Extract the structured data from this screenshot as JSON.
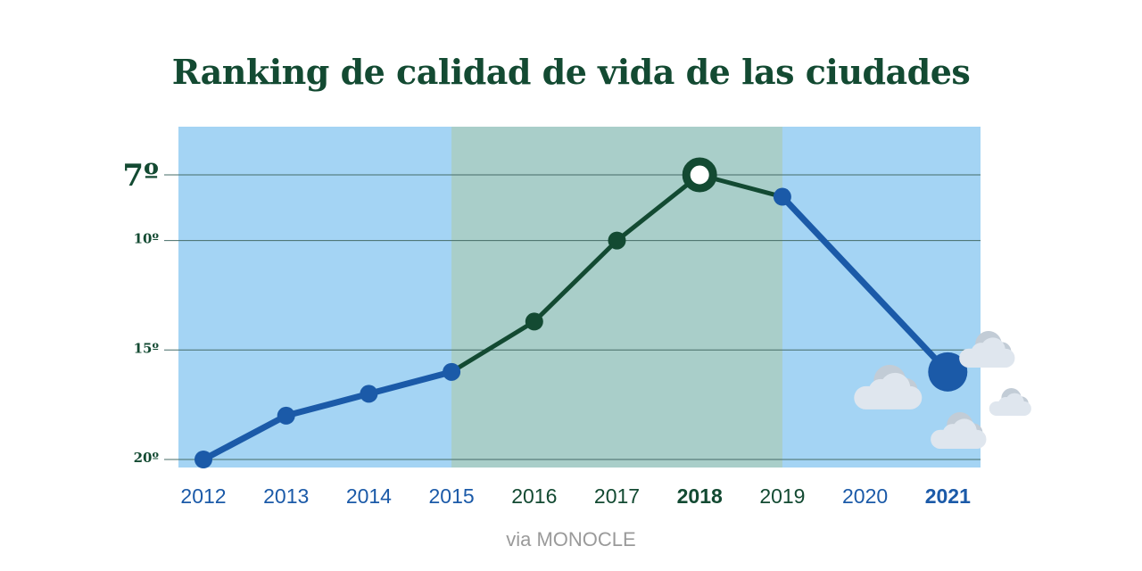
{
  "title": "Ranking de calidad de vida de las ciudades",
  "source": "via MONOCLE",
  "colors": {
    "background_band": "#a4d4f4",
    "highlight_band": "#a9cec9",
    "blue_line": "#1b5aa8",
    "green_line": "#134a32",
    "gridline": "#456b66",
    "cloud": "#dfe6ee",
    "cloud_shadow": "#c2ccd6"
  },
  "chart_data": {
    "type": "line",
    "title": "Ranking de calidad de vida de las ciudades",
    "xlabel": "",
    "ylabel": "",
    "y_axis_inverted": true,
    "ylim": [
      20.2,
      5.4
    ],
    "categories": [
      "2012",
      "2013",
      "2014",
      "2015",
      "2016",
      "2017",
      "2018",
      "2019",
      "2020",
      "2021"
    ],
    "y_ticks": [
      {
        "value": 7,
        "label": "7º",
        "emphasis": true
      },
      {
        "value": 10,
        "label": "10º",
        "emphasis": false
      },
      {
        "value": 15,
        "label": "15º",
        "emphasis": false
      },
      {
        "value": 20,
        "label": "20º",
        "emphasis": false
      }
    ],
    "emphasized_years": [
      "2018",
      "2021"
    ],
    "highlight_band": {
      "from": "2015",
      "to": "2019"
    },
    "series": [
      {
        "name": "Ranking",
        "points": [
          {
            "year": "2012",
            "rank": 20
          },
          {
            "year": "2013",
            "rank": 18
          },
          {
            "year": "2014",
            "rank": 17
          },
          {
            "year": "2015",
            "rank": 16
          },
          {
            "year": "2016",
            "rank": 13.7
          },
          {
            "year": "2017",
            "rank": 10
          },
          {
            "year": "2018",
            "rank": 7
          },
          {
            "year": "2019",
            "rank": 8
          },
          {
            "year": "2021",
            "rank": 16
          }
        ]
      }
    ],
    "annotations": [
      {
        "year": "2018",
        "marker": "ring"
      },
      {
        "year": "2021",
        "marker": "large-dot",
        "decoration": "clouds"
      }
    ]
  }
}
